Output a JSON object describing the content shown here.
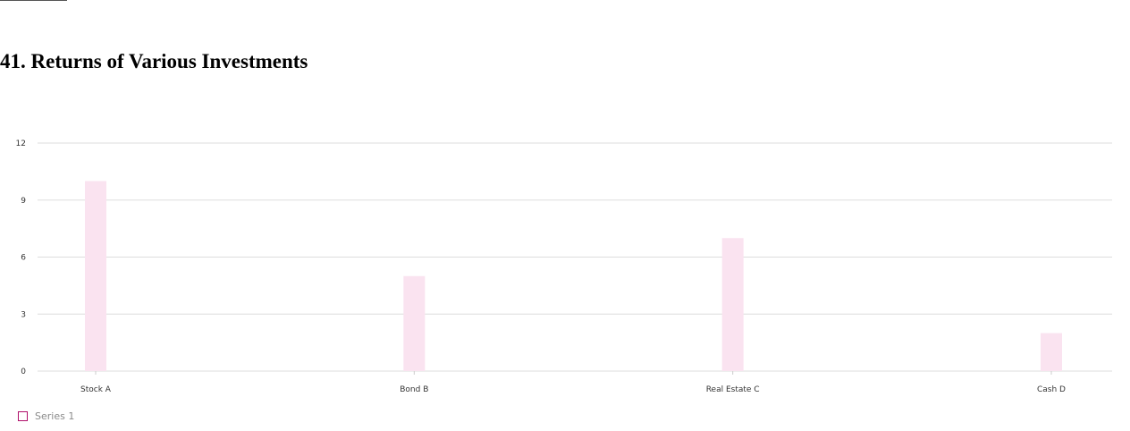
{
  "page": {
    "title": "41. Returns of Various Investments"
  },
  "chart_data": {
    "type": "bar",
    "title": "41. Returns of Various Investments",
    "xlabel": "",
    "ylabel": "",
    "categories": [
      "Stock A",
      "Bond B",
      "Real Estate C",
      "Cash D"
    ],
    "series": [
      {
        "name": "Series 1",
        "values": [
          10,
          5,
          7,
          2
        ],
        "color": "#fae3f0",
        "legend_color": "#b0106a"
      }
    ],
    "ylim": [
      0,
      12
    ],
    "yticks": [
      0,
      3,
      6,
      9,
      12
    ],
    "grid": true,
    "legend_position": "bottom-left"
  }
}
